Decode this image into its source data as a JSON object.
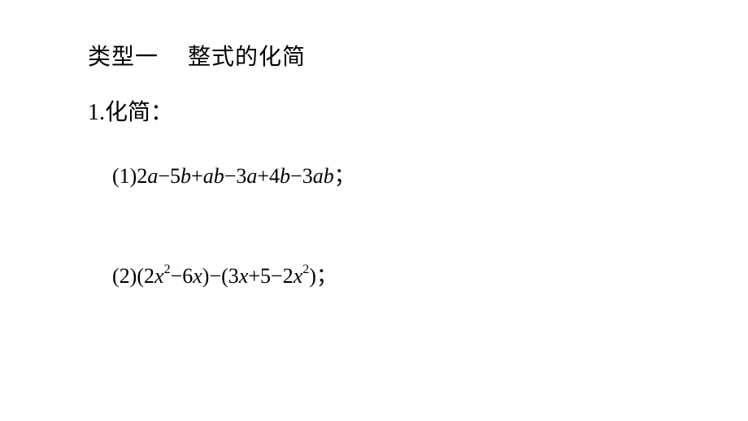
{
  "heading": {
    "label": "类型一",
    "title": "整式的化简"
  },
  "problem": {
    "number": "1.",
    "label": "化简：",
    "items": [
      {
        "number": "1",
        "lparen": "(",
        "rparen": ")",
        "expression_html": "<span class=\"num\">2</span><span class=\"math\">a</span><span class=\"op\">−</span><span class=\"num\">5</span><span class=\"math\">b</span><span class=\"op\">+</span><span class=\"math\">ab</span><span class=\"op\">−</span><span class=\"num\">3</span><span class=\"math\">a</span><span class=\"op\">+</span><span class=\"num\">4</span><span class=\"math\">b</span><span class=\"op\">−</span><span class=\"num\">3</span><span class=\"math\">ab</span>",
        "punct": "；"
      },
      {
        "number": "2",
        "lparen": "(",
        "rparen": ")",
        "expression_html": "<span class=\"paren\">(</span><span class=\"num\">2</span><span class=\"math\">x</span><span class=\"sup\">2</span><span class=\"op\">−</span><span class=\"num\">6</span><span class=\"math\">x</span><span class=\"paren\">)</span><span class=\"op\">−</span><span class=\"paren\">(</span><span class=\"num\">3</span><span class=\"math\">x</span><span class=\"op\">+</span><span class=\"num\">5</span><span class=\"op\">−</span><span class=\"num\">2</span><span class=\"math\">x</span><span class=\"sup\">2</span><span class=\"paren\">)</span>",
        "punct": "；"
      }
    ]
  },
  "colors": {
    "background": "#ffffff",
    "text": "#000000"
  },
  "fonts": {
    "cjk": "SimSun",
    "math": "Times New Roman",
    "heading_size": 28,
    "body_size": 26,
    "superscript_size": 16
  }
}
